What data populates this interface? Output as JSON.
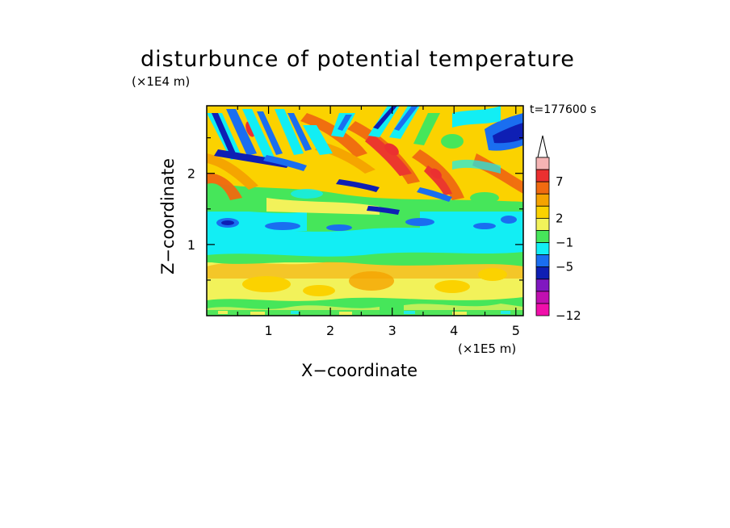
{
  "chart_data": {
    "type": "heatmap",
    "title": "disturbunce of potential temperature",
    "xlabel": "X−coordinate",
    "ylabel": "Z−coordinate",
    "x_scale_label": "(×1E5 m)",
    "y_scale_label": "(×1E4 m)",
    "time_label": "t=177600 s",
    "xlim": [
      0,
      5.12
    ],
    "ylim": [
      0,
      2.95
    ],
    "x_ticks": [
      "1",
      "2",
      "3",
      "4",
      "5"
    ],
    "y_ticks": [
      "1",
      "2"
    ],
    "colorbar": {
      "tick_labels": [
        "7",
        "2",
        "−1",
        "−5",
        "−12"
      ],
      "colors_top_to_bottom": [
        "#f5b4b4",
        "#eb3030",
        "#f06a10",
        "#f5a300",
        "#fbd200",
        "#f2f25a",
        "#46e65a",
        "#12eef4",
        "#1a6ef0",
        "#0e1fb4",
        "#8018c0",
        "#c010b0",
        "#f00faa"
      ]
    },
    "zones": [
      {
        "z_range": [
          0.0,
          0.15
        ],
        "value": "mixed −1 to 2, noisy surface layer"
      },
      {
        "z_range": [
          0.15,
          0.8
        ],
        "value": "about 1 to 2 (yellow/orange)"
      },
      {
        "z_range": [
          0.8,
          1.3
        ],
        "value": "about −1 (cyan)"
      },
      {
        "z_range": [
          1.3,
          1.5
        ],
        "value": "about −5 (blue patches)"
      },
      {
        "z_range": [
          1.5,
          2.95
        ],
        "value": "alternating −5 to 7 tilted wave bands"
      }
    ]
  }
}
